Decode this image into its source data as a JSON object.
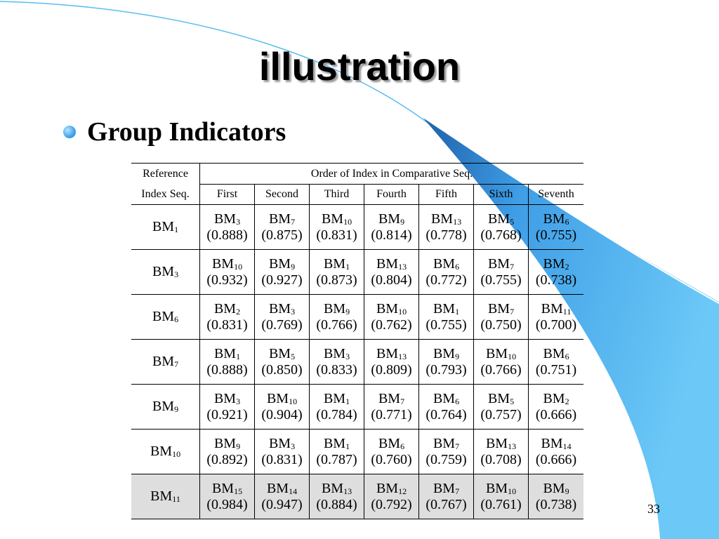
{
  "slide": {
    "title": "illustration",
    "bullet": "Group Indicators",
    "page_number": "33"
  },
  "table": {
    "header": {
      "ref_line1": "Reference",
      "ref_line2": "Index Seq.",
      "order_title": "Order of Index in Comparative Seq.",
      "columns": [
        "First",
        "Second",
        "Third",
        "Fourth",
        "Fifth",
        "Sixth",
        "Seventh"
      ]
    },
    "rows": [
      {
        "ref": {
          "base": "BM",
          "sub": "1"
        },
        "items": [
          {
            "base": "BM",
            "sub": "3",
            "value": "(0.888)"
          },
          {
            "base": "BM",
            "sub": "7",
            "value": "(0.875)"
          },
          {
            "base": "BM",
            "sub": "10",
            "value": "(0.831)"
          },
          {
            "base": "BM",
            "sub": "9",
            "value": "(0.814)"
          },
          {
            "base": "BM",
            "sub": "13",
            "value": "(0.778)"
          },
          {
            "base": "BM",
            "sub": "5",
            "value": "(0.768)"
          },
          {
            "base": "BM",
            "sub": "6",
            "value": "(0.755)"
          }
        ]
      },
      {
        "ref": {
          "base": "BM",
          "sub": "3"
        },
        "items": [
          {
            "base": "BM",
            "sub": "10",
            "value": "(0.932)"
          },
          {
            "base": "BM",
            "sub": "9",
            "value": "(0.927)"
          },
          {
            "base": "BM",
            "sub": "1",
            "value": "(0.873)"
          },
          {
            "base": "BM",
            "sub": "13",
            "value": "(0.804)"
          },
          {
            "base": "BM",
            "sub": "6",
            "value": "(0.772)"
          },
          {
            "base": "BM",
            "sub": "7",
            "value": "(0.755)"
          },
          {
            "base": "BM",
            "sub": "2",
            "value": "(0.738)"
          }
        ]
      },
      {
        "ref": {
          "base": "BM",
          "sub": "6"
        },
        "items": [
          {
            "base": "BM",
            "sub": "2",
            "value": "(0.831)"
          },
          {
            "base": "BM",
            "sub": "3",
            "value": "(0.769)"
          },
          {
            "base": "BM",
            "sub": "9",
            "value": "(0.766)"
          },
          {
            "base": "BM",
            "sub": "10",
            "value": "(0.762)"
          },
          {
            "base": "BM",
            "sub": "1",
            "value": "(0.755)"
          },
          {
            "base": "BM",
            "sub": "7",
            "value": "(0.750)"
          },
          {
            "base": "BM",
            "sub": "11",
            "value": "(0.700)"
          }
        ]
      },
      {
        "ref": {
          "base": "BM",
          "sub": "7"
        },
        "items": [
          {
            "base": "BM",
            "sub": "1",
            "value": "(0.888)"
          },
          {
            "base": "BM",
            "sub": "5",
            "value": "(0.850)"
          },
          {
            "base": "BM",
            "sub": "3",
            "value": "(0.833)"
          },
          {
            "base": "BM",
            "sub": "13",
            "value": "(0.809)"
          },
          {
            "base": "BM",
            "sub": "9",
            "value": "(0.793)"
          },
          {
            "base": "BM",
            "sub": "10",
            "value": "(0.766)"
          },
          {
            "base": "BM",
            "sub": "6",
            "value": "(0.751)"
          }
        ]
      },
      {
        "ref": {
          "base": "BM",
          "sub": "9"
        },
        "items": [
          {
            "base": "BM",
            "sub": "3",
            "value": "(0.921)"
          },
          {
            "base": "BM",
            "sub": "10",
            "value": "(0.904)"
          },
          {
            "base": "BM",
            "sub": "1",
            "value": "(0.784)"
          },
          {
            "base": "BM",
            "sub": "7",
            "value": "(0.771)"
          },
          {
            "base": "BM",
            "sub": "6",
            "value": "(0.764)"
          },
          {
            "base": "BM",
            "sub": "5",
            "value": "(0.757)"
          },
          {
            "base": "BM",
            "sub": "2",
            "value": "(0.666)"
          }
        ]
      },
      {
        "ref": {
          "base": "BM",
          "sub": "10"
        },
        "items": [
          {
            "base": "BM",
            "sub": "9",
            "value": "(0.892)"
          },
          {
            "base": "BM",
            "sub": "3",
            "value": "(0.831)"
          },
          {
            "base": "BM",
            "sub": "1",
            "value": "(0.787)"
          },
          {
            "base": "BM",
            "sub": "6",
            "value": "(0.760)"
          },
          {
            "base": "BM",
            "sub": "7",
            "value": "(0.759)"
          },
          {
            "base": "BM",
            "sub": "13",
            "value": "(0.708)"
          },
          {
            "base": "BM",
            "sub": "14",
            "value": "(0.666)"
          }
        ]
      },
      {
        "ref": {
          "base": "BM",
          "sub": "11"
        },
        "highlighted": true,
        "items": [
          {
            "base": "BM",
            "sub": "15",
            "value": "(0.984)"
          },
          {
            "base": "BM",
            "sub": "14",
            "value": "(0.947)"
          },
          {
            "base": "BM",
            "sub": "13",
            "value": "(0.884)"
          },
          {
            "base": "BM",
            "sub": "12",
            "value": "(0.792)"
          },
          {
            "base": "BM",
            "sub": "7",
            "value": "(0.767)"
          },
          {
            "base": "BM",
            "sub": "10",
            "value": "(0.761)"
          },
          {
            "base": "BM",
            "sub": "9",
            "value": "(0.738)"
          }
        ]
      }
    ]
  },
  "colors": {
    "decor_blue": "#5bbdf0",
    "decor_blue_dark": "#1f6fb8",
    "highlight_row": "#dedede"
  }
}
